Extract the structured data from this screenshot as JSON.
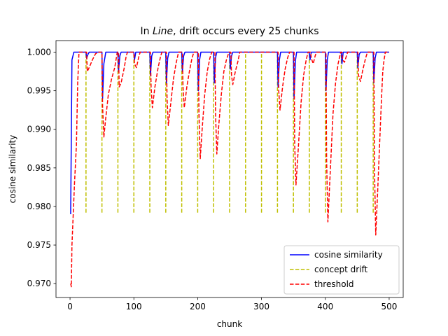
{
  "chart_data": {
    "type": "line",
    "title_prefix": "In ",
    "title_italic": "Line",
    "title_suffix": ", drift occurs every 25 chunks",
    "xlabel": "chunk",
    "ylabel": "cosine similarity",
    "xlim": [
      -22,
      522
    ],
    "ylim": [
      0.9682,
      1.0015
    ],
    "xticks": [
      0,
      100,
      200,
      300,
      400,
      500
    ],
    "yticks": [
      0.97,
      0.975,
      0.98,
      0.985,
      0.99,
      0.995,
      1.0
    ],
    "ytick_labels": [
      "0.970",
      "0.975",
      "0.980",
      "0.985",
      "0.990",
      "0.995",
      "1.000"
    ],
    "grid": false,
    "legend_position": "lower-right",
    "legend": [
      "cosine similarity",
      "concept drift",
      "threshold"
    ],
    "colors": {
      "cosine": "#0000ff",
      "drift": "#bfbf00",
      "threshold": "#ff0000"
    },
    "series": [
      {
        "name": "cosine similarity",
        "style": "solid",
        "points": [
          [
            1,
            0.979
          ],
          [
            3,
            0.999
          ],
          [
            6,
            1.0
          ],
          [
            25,
            1.0
          ],
          [
            26,
            0.9992
          ],
          [
            28,
            0.9997
          ],
          [
            30,
            1.0
          ],
          [
            50,
            1.0
          ],
          [
            51,
            0.994
          ],
          [
            53,
            0.9985
          ],
          [
            56,
            1.0
          ],
          [
            75,
            1.0
          ],
          [
            76,
            0.9975
          ],
          [
            78,
            0.9995
          ],
          [
            80,
            1.0
          ],
          [
            100,
            1.0
          ],
          [
            101,
            0.999
          ],
          [
            103,
            1.0
          ],
          [
            125,
            1.0
          ],
          [
            126,
            0.997
          ],
          [
            128,
            0.9995
          ],
          [
            130,
            1.0
          ],
          [
            150,
            1.0
          ],
          [
            151,
            0.996
          ],
          [
            153,
            0.9992
          ],
          [
            155,
            1.0
          ],
          [
            175,
            1.0
          ],
          [
            176,
            0.9975
          ],
          [
            178,
            0.9995
          ],
          [
            180,
            1.0
          ],
          [
            200,
            1.0
          ],
          [
            201,
            0.995
          ],
          [
            203,
            0.999
          ],
          [
            205,
            1.0
          ],
          [
            225,
            1.0
          ],
          [
            226,
            0.996
          ],
          [
            228,
            0.9993
          ],
          [
            230,
            1.0
          ],
          [
            250,
            1.0
          ],
          [
            251,
            0.9978
          ],
          [
            253,
            0.9995
          ],
          [
            255,
            1.0
          ],
          [
            275,
            1.0
          ],
          [
            300,
            1.0
          ],
          [
            325,
            1.0
          ],
          [
            326,
            0.9955
          ],
          [
            328,
            0.999
          ],
          [
            330,
            1.0
          ],
          [
            350,
            1.0
          ],
          [
            351,
            0.994
          ],
          [
            353,
            0.9988
          ],
          [
            355,
            1.0
          ],
          [
            375,
            1.0
          ],
          [
            376,
            0.999
          ],
          [
            378,
            1.0
          ],
          [
            400,
            1.0
          ],
          [
            401,
            0.995
          ],
          [
            403,
            0.999
          ],
          [
            405,
            1.0
          ],
          [
            425,
            1.0
          ],
          [
            426,
            0.9985
          ],
          [
            428,
            1.0
          ],
          [
            450,
            1.0
          ],
          [
            451,
            0.998
          ],
          [
            453,
            0.9997
          ],
          [
            455,
            1.0
          ],
          [
            475,
            1.0
          ],
          [
            476,
            0.996
          ],
          [
            478,
            0.9992
          ],
          [
            480,
            1.0
          ],
          [
            500,
            1.0
          ]
        ]
      },
      {
        "name": "threshold",
        "style": "dashed",
        "points": [
          [
            1,
            0.97
          ],
          [
            2,
            0.9696
          ],
          [
            3,
            0.975
          ],
          [
            5,
            0.979
          ],
          [
            7,
            0.983
          ],
          [
            10,
            0.988
          ],
          [
            12,
            0.996
          ],
          [
            14,
            1.0
          ],
          [
            26,
            1.0
          ],
          [
            27,
            0.9975
          ],
          [
            30,
            0.998
          ],
          [
            35,
            0.999
          ],
          [
            40,
            0.9998
          ],
          [
            44,
            1.0
          ],
          [
            50,
            1.0
          ],
          [
            51,
            0.993
          ],
          [
            53,
            0.989
          ],
          [
            56,
            0.9915
          ],
          [
            60,
            0.9945
          ],
          [
            65,
            0.9965
          ],
          [
            70,
            0.998
          ],
          [
            74,
            1.0
          ],
          [
            76,
            1.0
          ],
          [
            77,
            0.9955
          ],
          [
            80,
            0.996
          ],
          [
            85,
            0.998
          ],
          [
            88,
            0.9995
          ],
          [
            90,
            1.0
          ],
          [
            100,
            1.0
          ],
          [
            101,
            0.9985
          ],
          [
            104,
            0.998
          ],
          [
            108,
            0.9995
          ],
          [
            110,
            1.0
          ],
          [
            126,
            1.0
          ],
          [
            127,
            0.9955
          ],
          [
            129,
            0.9928
          ],
          [
            133,
            0.9955
          ],
          [
            138,
            0.998
          ],
          [
            142,
            0.9995
          ],
          [
            144,
            1.0
          ],
          [
            151,
            1.0
          ],
          [
            152,
            0.994
          ],
          [
            154,
            0.9905
          ],
          [
            158,
            0.9935
          ],
          [
            162,
            0.9965
          ],
          [
            166,
            0.9985
          ],
          [
            170,
            1.0
          ],
          [
            176,
            1.0
          ],
          [
            177,
            0.9955
          ],
          [
            179,
            0.9928
          ],
          [
            183,
            0.9955
          ],
          [
            187,
            0.9975
          ],
          [
            191,
            0.9992
          ],
          [
            194,
            1.0
          ],
          [
            201,
            1.0
          ],
          [
            202,
            0.992
          ],
          [
            204,
            0.9862
          ],
          [
            207,
            0.99
          ],
          [
            211,
            0.9945
          ],
          [
            215,
            0.9975
          ],
          [
            219,
            0.9992
          ],
          [
            222,
            1.0
          ],
          [
            227,
            1.0
          ],
          [
            228,
            0.992
          ],
          [
            230,
            0.9868
          ],
          [
            233,
            0.9905
          ],
          [
            237,
            0.9945
          ],
          [
            241,
            0.9975
          ],
          [
            245,
            0.999
          ],
          [
            249,
            1.0
          ],
          [
            252,
            1.0
          ],
          [
            253,
            0.997
          ],
          [
            255,
            0.9958
          ],
          [
            259,
            0.9975
          ],
          [
            263,
            0.9988
          ],
          [
            266,
            1.0
          ],
          [
            290,
            1.0
          ],
          [
            326,
            1.0
          ],
          [
            327,
            0.995
          ],
          [
            329,
            0.9925
          ],
          [
            333,
            0.9955
          ],
          [
            337,
            0.9978
          ],
          [
            341,
            0.9993
          ],
          [
            344,
            1.0
          ],
          [
            351,
            1.0
          ],
          [
            352,
            0.988
          ],
          [
            354,
            0.9828
          ],
          [
            358,
            0.988
          ],
          [
            362,
            0.9935
          ],
          [
            366,
            0.997
          ],
          [
            370,
            0.999
          ],
          [
            373,
            1.0
          ],
          [
            377,
            1.0
          ],
          [
            378,
            0.9992
          ],
          [
            381,
            0.9985
          ],
          [
            384,
            0.9995
          ],
          [
            386,
            1.0
          ],
          [
            401,
            1.0
          ],
          [
            402,
            0.986
          ],
          [
            404,
            0.978
          ],
          [
            408,
            0.985
          ],
          [
            412,
            0.992
          ],
          [
            416,
            0.996
          ],
          [
            420,
            0.9985
          ],
          [
            424,
            1.0
          ],
          [
            426,
            1.0
          ],
          [
            427,
            0.999
          ],
          [
            430,
            0.9987
          ],
          [
            433,
            0.9995
          ],
          [
            435,
            1.0
          ],
          [
            451,
            1.0
          ],
          [
            452,
            0.997
          ],
          [
            455,
            0.9962
          ],
          [
            459,
            0.9978
          ],
          [
            463,
            0.9992
          ],
          [
            466,
            1.0
          ],
          [
            476,
            1.0
          ],
          [
            477,
            0.985
          ],
          [
            479,
            0.9763
          ],
          [
            482,
            0.982
          ],
          [
            485,
            0.988
          ],
          [
            488,
            0.994
          ],
          [
            490,
            0.9975
          ],
          [
            492,
            0.999
          ],
          [
            494,
            1.0
          ],
          [
            500,
            1.0
          ]
        ]
      }
    ],
    "drift_markers": {
      "name": "concept drift",
      "style": "dashed",
      "x": [
        25,
        50,
        75,
        100,
        125,
        150,
        175,
        200,
        225,
        250,
        275,
        300,
        325,
        350,
        375,
        400,
        425,
        450,
        475
      ],
      "y_low": 0.9792,
      "y_high": 1.0
    }
  }
}
